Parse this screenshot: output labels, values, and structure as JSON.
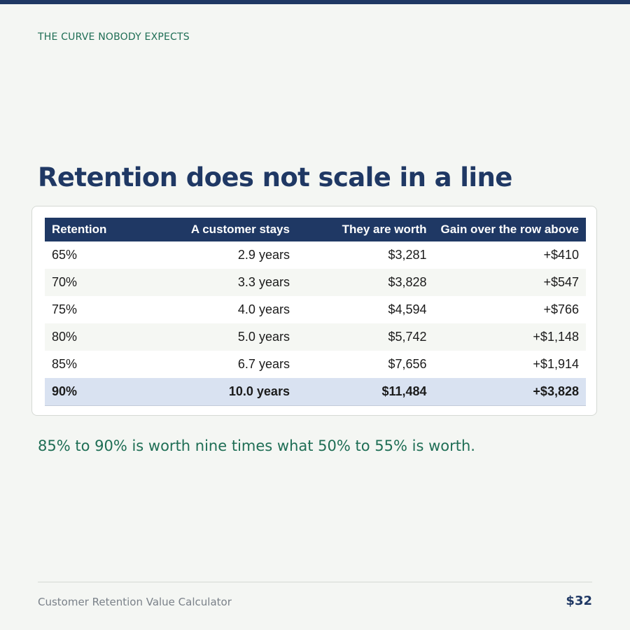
{
  "eyebrow": "THE CURVE NOBODY EXPECTS",
  "title": "Retention does not scale in a line",
  "table": {
    "headers": [
      "Retention",
      "A customer stays",
      "They are worth",
      "Gain over the row above"
    ],
    "rows": [
      [
        "65%",
        "2.9 years",
        "$3,281",
        "+$410"
      ],
      [
        "70%",
        "3.3 years",
        "$3,828",
        "+$547"
      ],
      [
        "75%",
        "4.0 years",
        "$4,594",
        "+$766"
      ],
      [
        "80%",
        "5.0 years",
        "$5,742",
        "+$1,148"
      ],
      [
        "85%",
        "6.7 years",
        "$7,656",
        "+$1,914"
      ],
      [
        "90%",
        "10.0 years",
        "$11,484",
        "+$3,828"
      ]
    ],
    "highlighted_row": 5
  },
  "callout": "85% to 90% is worth nine times what 50% to 55% is worth.",
  "footer": {
    "product": "Customer Retention Value Calculator",
    "price": "$32"
  },
  "colors": {
    "navy": "#1f3864",
    "green": "#1f6e55",
    "background": "#f4f6f3",
    "highlight": "#d9e2f1"
  }
}
